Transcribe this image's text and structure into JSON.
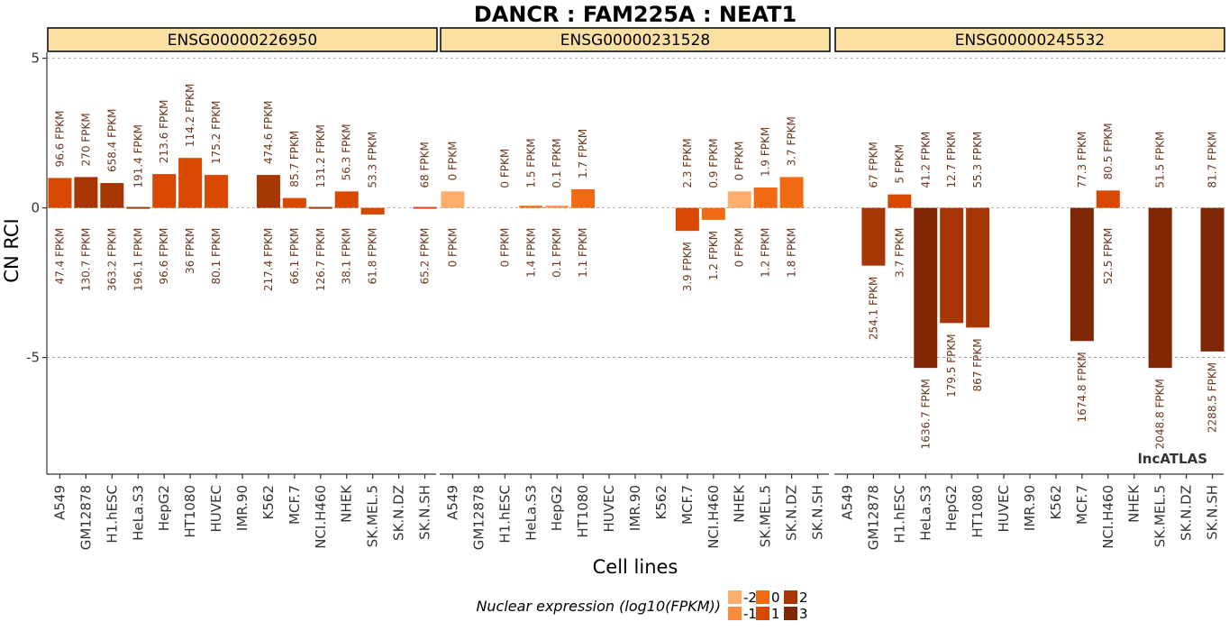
{
  "chart_data": {
    "type": "bar",
    "title": "DANCR : FAM225A : NEAT1",
    "xlabel": "Cell lines",
    "ylabel": "CN RCI",
    "ylim": [
      -8.9,
      5.2
    ],
    "yticks": [
      5,
      0,
      -5
    ],
    "ytick_labels": [
      "5",
      "0",
      "-5"
    ],
    "grid": "horizontal dashed at y ticks",
    "categories": [
      "A549",
      "GM12878",
      "H1.hESC",
      "HeLa.S3",
      "HepG2",
      "HT1080",
      "HUVEC",
      "IMR.90",
      "K562",
      "MCF.7",
      "NCI.H460",
      "NHEK",
      "SK.MEL.5",
      "SK.N.DZ",
      "SK.N.SH"
    ],
    "watermark": "lncATLAS",
    "legend": {
      "title": "Nuclear expression (log10(FPKM))",
      "placement": "bottom",
      "entries": [
        {
          "label": "-2",
          "color": "#fdae6b"
        },
        {
          "label": "-1",
          "color": "#fd8d3c"
        },
        {
          "label": "0",
          "color": "#f16913"
        },
        {
          "label": "1",
          "color": "#d94801"
        },
        {
          "label": "2",
          "color": "#a63603"
        },
        {
          "label": "3",
          "color": "#7f2704"
        }
      ]
    },
    "panels": [
      {
        "name": "ENSG00000226950",
        "values": [
          1.0,
          1.03,
          0.83,
          -0.03,
          1.13,
          1.67,
          1.1,
          null,
          1.1,
          0.33,
          0.05,
          0.55,
          -0.22,
          null,
          0.05
        ],
        "cytoplasm_labels": [
          "96.6 FPKM",
          "270 FPKM",
          "658.4 FPKM",
          "191.4 FPKM",
          "213.6 FPKM",
          "114.2 FPKM",
          "175.2 FPKM",
          "",
          "474.6 FPKM",
          "85.7 FPKM",
          "131.2 FPKM",
          "56.3 FPKM",
          "53.3 FPKM",
          "",
          "68 FPKM"
        ],
        "nucleus_labels": [
          "47.4 FPKM",
          "130.7 FPKM",
          "363.2 FPKM",
          "196.1 FPKM",
          "96.6 FPKM",
          "36 FPKM",
          "80.1 FPKM",
          "",
          "217.4 FPKM",
          "66.1 FPKM",
          "126.7 FPKM",
          "38.1 FPKM",
          "61.8 FPKM",
          "",
          "65.2 FPKM"
        ],
        "colors": [
          "#d94801",
          "#a63603",
          "#a63603",
          "#a63603",
          "#d94801",
          "#d94801",
          "#d94801",
          null,
          "#a63603",
          "#d94801",
          "#a63603",
          "#d94801",
          "#d94801",
          null,
          "#d94801"
        ]
      },
      {
        "name": "ENSG00000231528",
        "values": [
          0.55,
          null,
          null,
          0.07,
          0.07,
          0.62,
          null,
          null,
          null,
          -0.77,
          -0.4,
          0.55,
          0.68,
          1.03,
          null
        ],
        "cytoplasm_labels": [
          "0 FPKM",
          "",
          "0 FPKM",
          "1.5 FPKM",
          "0.1 FPKM",
          "1.7 FPKM",
          "",
          "",
          "",
          "2.3 FPKM",
          "0.9 FPKM",
          "0 FPKM",
          "1.9 FPKM",
          "3.7 FPKM",
          ""
        ],
        "nucleus_labels": [
          "0 FPKM",
          "",
          "0 FPKM",
          "1.4 FPKM",
          "0.1 FPKM",
          "1.1 FPKM",
          "",
          "",
          "",
          "3.9 FPKM",
          "1.2 FPKM",
          "0 FPKM",
          "1.2 FPKM",
          "1.8 FPKM",
          ""
        ],
        "colors": [
          "#fdae6b",
          null,
          null,
          "#f16913",
          "#fd8d3c",
          "#f16913",
          null,
          null,
          null,
          "#d94801",
          "#f16913",
          "#fdae6b",
          "#f16913",
          "#f16913",
          null
        ]
      },
      {
        "name": "ENSG00000245532",
        "values": [
          null,
          -1.93,
          0.45,
          -5.35,
          -3.85,
          -4.0,
          null,
          null,
          null,
          -4.45,
          0.58,
          null,
          -5.35,
          null,
          -4.8
        ],
        "cytoplasm_labels": [
          "",
          "67 FPKM",
          "5 FPKM",
          "41.2 FPKM",
          "12.7 FPKM",
          "55.3 FPKM",
          "",
          "",
          "",
          "77.3 FPKM",
          "80.5 FPKM",
          "",
          "51.5 FPKM",
          "",
          "81.7 FPKM"
        ],
        "nucleus_labels": [
          "",
          "254.1 FPKM",
          "3.7 FPKM",
          "1636.7 FPKM",
          "179.5 FPKM",
          "867 FPKM",
          "",
          "",
          "",
          "1674.8 FPKM",
          "52.5 FPKM",
          "",
          "2048.8 FPKM",
          "",
          "2288.5 FPKM"
        ],
        "colors": [
          null,
          "#a63603",
          "#d94801",
          "#7f2704",
          "#a63603",
          "#a63603",
          null,
          null,
          null,
          "#7f2704",
          "#d94801",
          null,
          "#7f2704",
          null,
          "#7f2704"
        ]
      }
    ]
  }
}
